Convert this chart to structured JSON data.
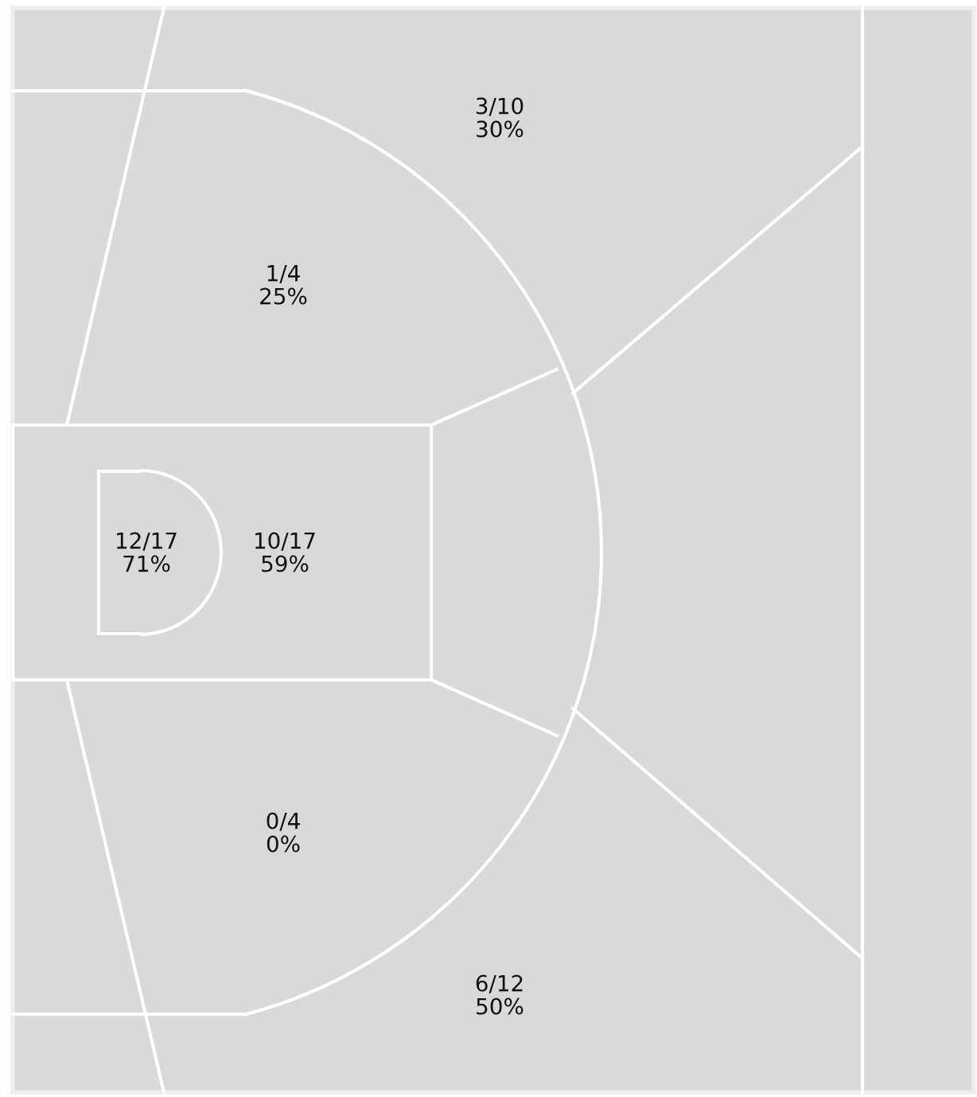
{
  "chart_data": {
    "type": "other",
    "categories": [
      null,
      null,
      null,
      null,
      null,
      null
    ],
    "values": [
      30,
      25,
      71,
      59,
      0,
      50
    ],
    "value_labels": [
      "3/10\n30%",
      "1/4\n25%",
      "12/17\n71%",
      "10/17\n59%",
      "0/4\n0%",
      "6/12\n50%"
    ]
  }
}
